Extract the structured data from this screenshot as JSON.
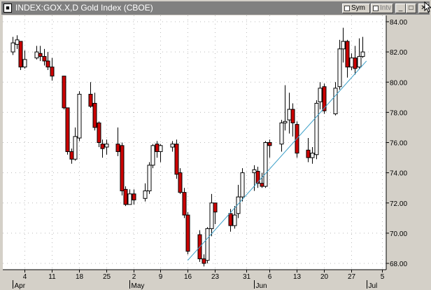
{
  "window": {
    "title": "INDEX:GOX.X,D Gold Index (CBOE)",
    "sym_label": "Sym",
    "intv_label": "Intv",
    "close_glyph": "✕",
    "max_glyph": "□",
    "min_glyph": "_"
  },
  "colors": {
    "chart_bg": "#ffffff",
    "frame_bg": "#d4d0c8",
    "up_fill": "#ffffff",
    "down_fill": "#cc0000",
    "trendline": "#3a9fc8",
    "grid": "#bbbbbb"
  },
  "chart_data": {
    "type": "candlestick",
    "ylim": [
      67.5,
      84.4
    ],
    "y_ticks": [
      "68.00",
      "70.00",
      "72.00",
      "74.00",
      "76.00",
      "78.00",
      "80.00",
      "82.00",
      "84.00"
    ],
    "x_day_labels": [
      "4",
      "11",
      "18",
      "25",
      "2",
      "9",
      "16",
      "23",
      "31",
      "6",
      "13",
      "20",
      "27",
      "5"
    ],
    "x_month_labels": [
      "Apr",
      "May",
      "Jun",
      "Jul"
    ],
    "grid": true,
    "trendline": {
      "from": [
        "May 16",
        68.2
      ],
      "to": [
        "Jul 1",
        81.4
      ]
    },
    "candles": [
      [
        "Apr 1",
        82.0,
        82.6,
        83.0,
        81.8
      ],
      [
        "Apr 2",
        82.5,
        82.8,
        83.1,
        82.2
      ],
      [
        "Apr 3",
        82.7,
        81.0,
        82.7,
        80.8
      ],
      [
        "Apr 4",
        81.0,
        81.5,
        82.1,
        80.9
      ],
      [
        "Apr 7",
        81.6,
        82.0,
        82.4,
        81.5
      ],
      [
        "Apr 8",
        81.9,
        81.7,
        82.4,
        81.4
      ],
      [
        "Apr 9",
        81.7,
        81.4,
        82.2,
        81.1
      ],
      [
        "Apr 10",
        81.4,
        81.0,
        82.0,
        80.8
      ],
      [
        "Apr 11",
        81.0,
        80.4,
        81.6,
        80.1
      ],
      [
        "Apr 14",
        80.4,
        78.3,
        80.4,
        78.2
      ],
      [
        "Apr 15",
        78.3,
        75.4,
        78.3,
        75.2
      ],
      [
        "Apr 16",
        75.4,
        74.9,
        75.6,
        74.6
      ],
      [
        "Apr 17",
        74.9,
        76.4,
        77.0,
        74.8
      ],
      [
        "Apr 18",
        76.3,
        79.2,
        79.4,
        76.1
      ],
      [
        "Apr 21",
        79.2,
        78.4,
        80.0,
        78.3
      ],
      [
        "Apr 22",
        78.6,
        77.0,
        79.3,
        76.8
      ],
      [
        "Apr 23",
        77.3,
        76.0,
        77.4,
        75.7
      ],
      [
        "Apr 24",
        75.9,
        75.6,
        76.2,
        75.0
      ],
      [
        "Apr 25",
        75.7,
        75.9,
        76.2,
        75.2
      ],
      [
        "Apr 28",
        75.9,
        75.4,
        77.0,
        75.1
      ],
      [
        "Apr 29",
        75.8,
        72.8,
        76.0,
        72.5
      ],
      [
        "Apr 30",
        72.9,
        71.9,
        73.1,
        71.8
      ],
      [
        "May 1",
        71.9,
        72.6,
        72.9,
        71.9
      ],
      [
        "May 2",
        72.6,
        72.2,
        72.9,
        71.9
      ],
      [
        "May 5",
        72.3,
        72.8,
        73.3,
        72.1
      ],
      [
        "May 6",
        72.8,
        74.5,
        74.7,
        72.6
      ],
      [
        "May 7",
        74.5,
        75.8,
        75.9,
        74.3
      ],
      [
        "May 8",
        75.9,
        75.4,
        76.1,
        75.0
      ],
      [
        "May 9",
        75.4,
        75.8,
        75.9,
        74.7
      ],
      [
        "May 12",
        75.7,
        75.9,
        76.1,
        75.4
      ],
      [
        "May 13",
        75.9,
        73.9,
        76.2,
        73.6
      ],
      [
        "May 14",
        74.0,
        72.7,
        74.3,
        72.6
      ],
      [
        "May 15",
        72.7,
        71.2,
        73.0,
        71.0
      ],
      [
        "May 16",
        71.2,
        68.8,
        71.4,
        68.6
      ],
      [
        "May 19",
        69.9,
        68.3,
        70.2,
        68.1
      ],
      [
        "May 20",
        68.3,
        68.0,
        68.6,
        67.8
      ],
      [
        "May 21",
        68.2,
        70.3,
        70.4,
        68.0
      ],
      [
        "May 22",
        70.3,
        72.0,
        72.6,
        69.8
      ],
      [
        "May 23",
        72.0,
        71.4,
        72.0,
        70.6
      ],
      [
        "May 27",
        71.3,
        70.5,
        71.6,
        70.1
      ],
      [
        "May 28",
        70.5,
        71.2,
        71.8,
        70.3
      ],
      [
        "May 29",
        71.3,
        72.4,
        73.2,
        71.0
      ],
      [
        "May 30",
        72.4,
        74.0,
        74.3,
        72.1
      ],
      [
        "Jun 2",
        74.0,
        74.2,
        74.5,
        72.8
      ],
      [
        "Jun 3",
        74.1,
        73.3,
        74.4,
        73.0
      ],
      [
        "Jun 4",
        73.3,
        73.1,
        74.0,
        73.0
      ],
      [
        "Jun 5",
        73.1,
        76.0,
        76.1,
        73.0
      ],
      [
        "Jun 6",
        76.0,
        75.8,
        76.2,
        75.0
      ],
      [
        "Jun 9",
        75.9,
        77.3,
        77.5,
        75.4
      ],
      [
        "Jun 10",
        77.3,
        77.4,
        79.8,
        76.8
      ],
      [
        "Jun 11",
        77.5,
        78.2,
        79.3,
        76.6
      ],
      [
        "Jun 12",
        78.2,
        77.3,
        78.6,
        76.4
      ],
      [
        "Jun 13",
        77.2,
        75.3,
        77.4,
        75.0
      ],
      [
        "Jun 16",
        75.5,
        75.0,
        76.3,
        74.7
      ],
      [
        "Jun 17",
        75.0,
        75.3,
        75.7,
        74.6
      ],
      [
        "Jun 18",
        75.2,
        78.6,
        78.8,
        74.9
      ],
      [
        "Jun 19",
        78.7,
        79.6,
        80.0,
        78.2
      ],
      [
        "Jun 20",
        79.7,
        78.1,
        79.9,
        77.9
      ],
      [
        "Jun 23",
        77.9,
        79.6,
        80.0,
        77.8
      ],
      [
        "Jun 24",
        79.7,
        82.2,
        82.8,
        79.5
      ],
      [
        "Jun 25",
        82.2,
        82.7,
        83.6,
        81.3
      ],
      [
        "Jun 26",
        82.7,
        81.0,
        82.8,
        80.3
      ],
      [
        "Jun 27",
        81.0,
        81.6,
        81.9,
        80.8
      ],
      [
        "Jun 28",
        81.6,
        80.9,
        82.4,
        80.5
      ],
      [
        "Jun 29",
        81.0,
        81.7,
        82.9,
        80.9
      ],
      [
        "Jun 30",
        81.7,
        82.0,
        83.0,
        81.6
      ]
    ]
  }
}
